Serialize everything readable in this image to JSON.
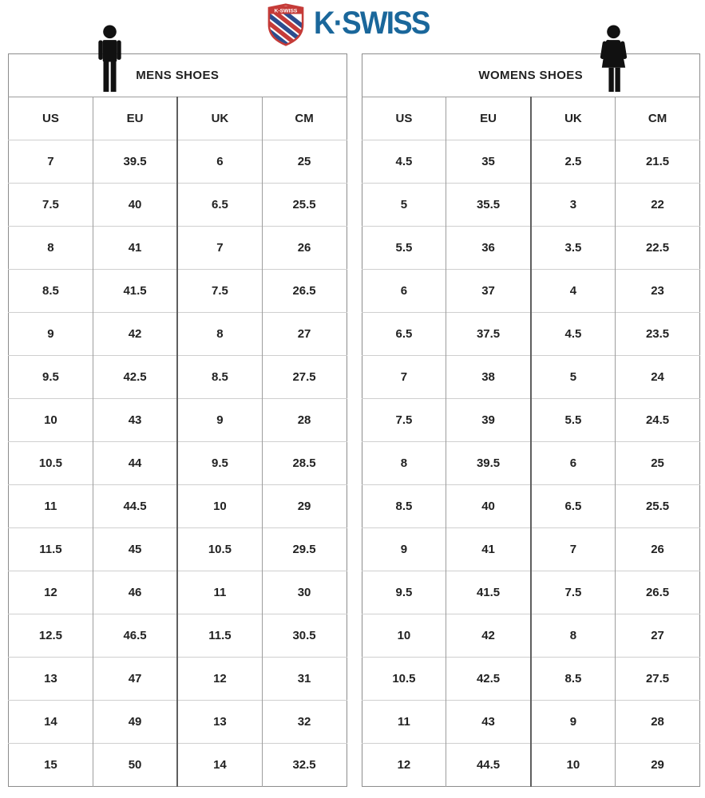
{
  "logo": {
    "wordmark": "K·SWISS",
    "shield_label": "K-SWISS",
    "brand_blue": "#1A679B",
    "shield_red": "#C53B38",
    "shield_navy": "#2C4D8E",
    "icon_black": "#111111"
  },
  "mens_table": {
    "title": "MENS SHOES",
    "columns": [
      "US",
      "EU",
      "UK",
      "CM"
    ],
    "rows": [
      [
        "7",
        "39.5",
        "6",
        "25"
      ],
      [
        "7.5",
        "40",
        "6.5",
        "25.5"
      ],
      [
        "8",
        "41",
        "7",
        "26"
      ],
      [
        "8.5",
        "41.5",
        "7.5",
        "26.5"
      ],
      [
        "9",
        "42",
        "8",
        "27"
      ],
      [
        "9.5",
        "42.5",
        "8.5",
        "27.5"
      ],
      [
        "10",
        "43",
        "9",
        "28"
      ],
      [
        "10.5",
        "44",
        "9.5",
        "28.5"
      ],
      [
        "11",
        "44.5",
        "10",
        "29"
      ],
      [
        "11.5",
        "45",
        "10.5",
        "29.5"
      ],
      [
        "12",
        "46",
        "11",
        "30"
      ],
      [
        "12.5",
        "46.5",
        "11.5",
        "30.5"
      ],
      [
        "13",
        "47",
        "12",
        "31"
      ],
      [
        "14",
        "49",
        "13",
        "32"
      ],
      [
        "15",
        "50",
        "14",
        "32.5"
      ]
    ]
  },
  "womens_table": {
    "title": "WOMENS SHOES",
    "columns": [
      "US",
      "EU",
      "UK",
      "CM"
    ],
    "rows": [
      [
        "4.5",
        "35",
        "2.5",
        "21.5"
      ],
      [
        "5",
        "35.5",
        "3",
        "22"
      ],
      [
        "5.5",
        "36",
        "3.5",
        "22.5"
      ],
      [
        "6",
        "37",
        "4",
        "23"
      ],
      [
        "6.5",
        "37.5",
        "4.5",
        "23.5"
      ],
      [
        "7",
        "38",
        "5",
        "24"
      ],
      [
        "7.5",
        "39",
        "5.5",
        "24.5"
      ],
      [
        "8",
        "39.5",
        "6",
        "25"
      ],
      [
        "8.5",
        "40",
        "6.5",
        "25.5"
      ],
      [
        "9",
        "41",
        "7",
        "26"
      ],
      [
        "9.5",
        "41.5",
        "7.5",
        "26.5"
      ],
      [
        "10",
        "42",
        "8",
        "27"
      ],
      [
        "10.5",
        "42.5",
        "8.5",
        "27.5"
      ],
      [
        "11",
        "43",
        "9",
        "28"
      ],
      [
        "12",
        "44.5",
        "10",
        "29"
      ]
    ]
  }
}
